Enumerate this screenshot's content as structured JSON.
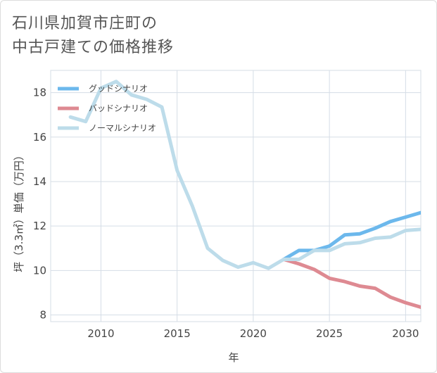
{
  "title": {
    "line1": "石川県加賀市庄町の",
    "line2": "中古戸建ての価格推移"
  },
  "colors": {
    "good": "#6cb8ec",
    "bad": "#de8a92",
    "normal": "#bddcea",
    "grid": "#d5dde6",
    "axis": "#444444"
  },
  "chart_data": {
    "type": "line",
    "title": "石川県加賀市庄町の中古戸建ての価格推移",
    "xlabel": "年",
    "ylabel": "坪（3.3㎡）単価（万円）",
    "xlim": [
      2006.7,
      2031
    ],
    "ylim": [
      7.7,
      19
    ],
    "xticks": [
      2010,
      2015,
      2020,
      2025,
      2030
    ],
    "yticks": [
      8,
      10,
      12,
      14,
      16,
      18
    ],
    "grid": true,
    "legend_position": "top-left",
    "series": [
      {
        "name": "グッドシナリオ",
        "color_key": "good",
        "x": [
          2022,
          2023,
          2024,
          2025,
          2026,
          2027,
          2028,
          2029,
          2030,
          2031
        ],
        "y": [
          10.5,
          10.9,
          10.9,
          11.1,
          11.6,
          11.65,
          11.9,
          12.2,
          12.4,
          12.6
        ]
      },
      {
        "name": "バッドシナリオ",
        "color_key": "bad",
        "x": [
          2022,
          2023,
          2024,
          2025,
          2026,
          2027,
          2028,
          2029,
          2030,
          2031
        ],
        "y": [
          10.5,
          10.3,
          10.05,
          9.65,
          9.5,
          9.3,
          9.2,
          8.8,
          8.55,
          8.35
        ]
      },
      {
        "name": "ノーマルシナリオ",
        "color_key": "normal",
        "x": [
          2008,
          2009,
          2010,
          2011,
          2012,
          2013,
          2014,
          2015,
          2016,
          2017,
          2018,
          2019,
          2020,
          2021,
          2022,
          2023,
          2024,
          2025,
          2026,
          2027,
          2028,
          2029,
          2030,
          2031
        ],
        "y": [
          16.9,
          16.7,
          18.2,
          18.5,
          17.9,
          17.7,
          17.35,
          14.5,
          12.9,
          11.0,
          10.45,
          10.15,
          10.35,
          10.1,
          10.5,
          10.5,
          10.9,
          10.9,
          11.2,
          11.25,
          11.45,
          11.5,
          11.8,
          11.85
        ]
      }
    ]
  }
}
